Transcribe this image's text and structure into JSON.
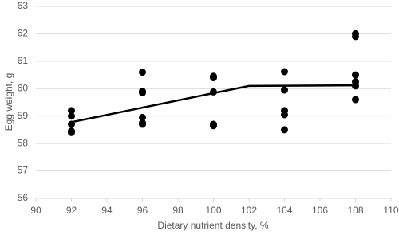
{
  "chart_data": {
    "type": "scatter",
    "x_label": "Dietary nutrient density, %",
    "y_label": "Egg weight, g",
    "xlim": [
      90,
      110
    ],
    "xticks": [
      90,
      92,
      94,
      96,
      98,
      100,
      102,
      104,
      106,
      108,
      110
    ],
    "ylim": [
      56,
      63
    ],
    "yticks": [
      56,
      57,
      58,
      59,
      60,
      61,
      62,
      63
    ],
    "grid": true,
    "series": [
      {
        "color": "#000000",
        "x": [
          92,
          92,
          92,
          92,
          92,
          96,
          96,
          96,
          96,
          96,
          96,
          100,
          100,
          100,
          100,
          100,
          104,
          104,
          104,
          104,
          104,
          108,
          108,
          108,
          108,
          108,
          108
        ],
        "values": [
          59.2,
          59.0,
          58.7,
          58.45,
          58.4,
          60.6,
          59.9,
          59.85,
          58.95,
          58.75,
          58.7,
          60.45,
          60.4,
          59.88,
          58.7,
          58.65,
          60.62,
          59.95,
          59.2,
          59.05,
          58.5,
          62.0,
          61.9,
          60.5,
          60.25,
          60.1,
          59.6
        ]
      }
    ],
    "fit_line": {
      "color": "#000000",
      "x": [
        92,
        102,
        108
      ],
      "values": [
        58.78,
        60.1,
        60.12
      ]
    }
  }
}
